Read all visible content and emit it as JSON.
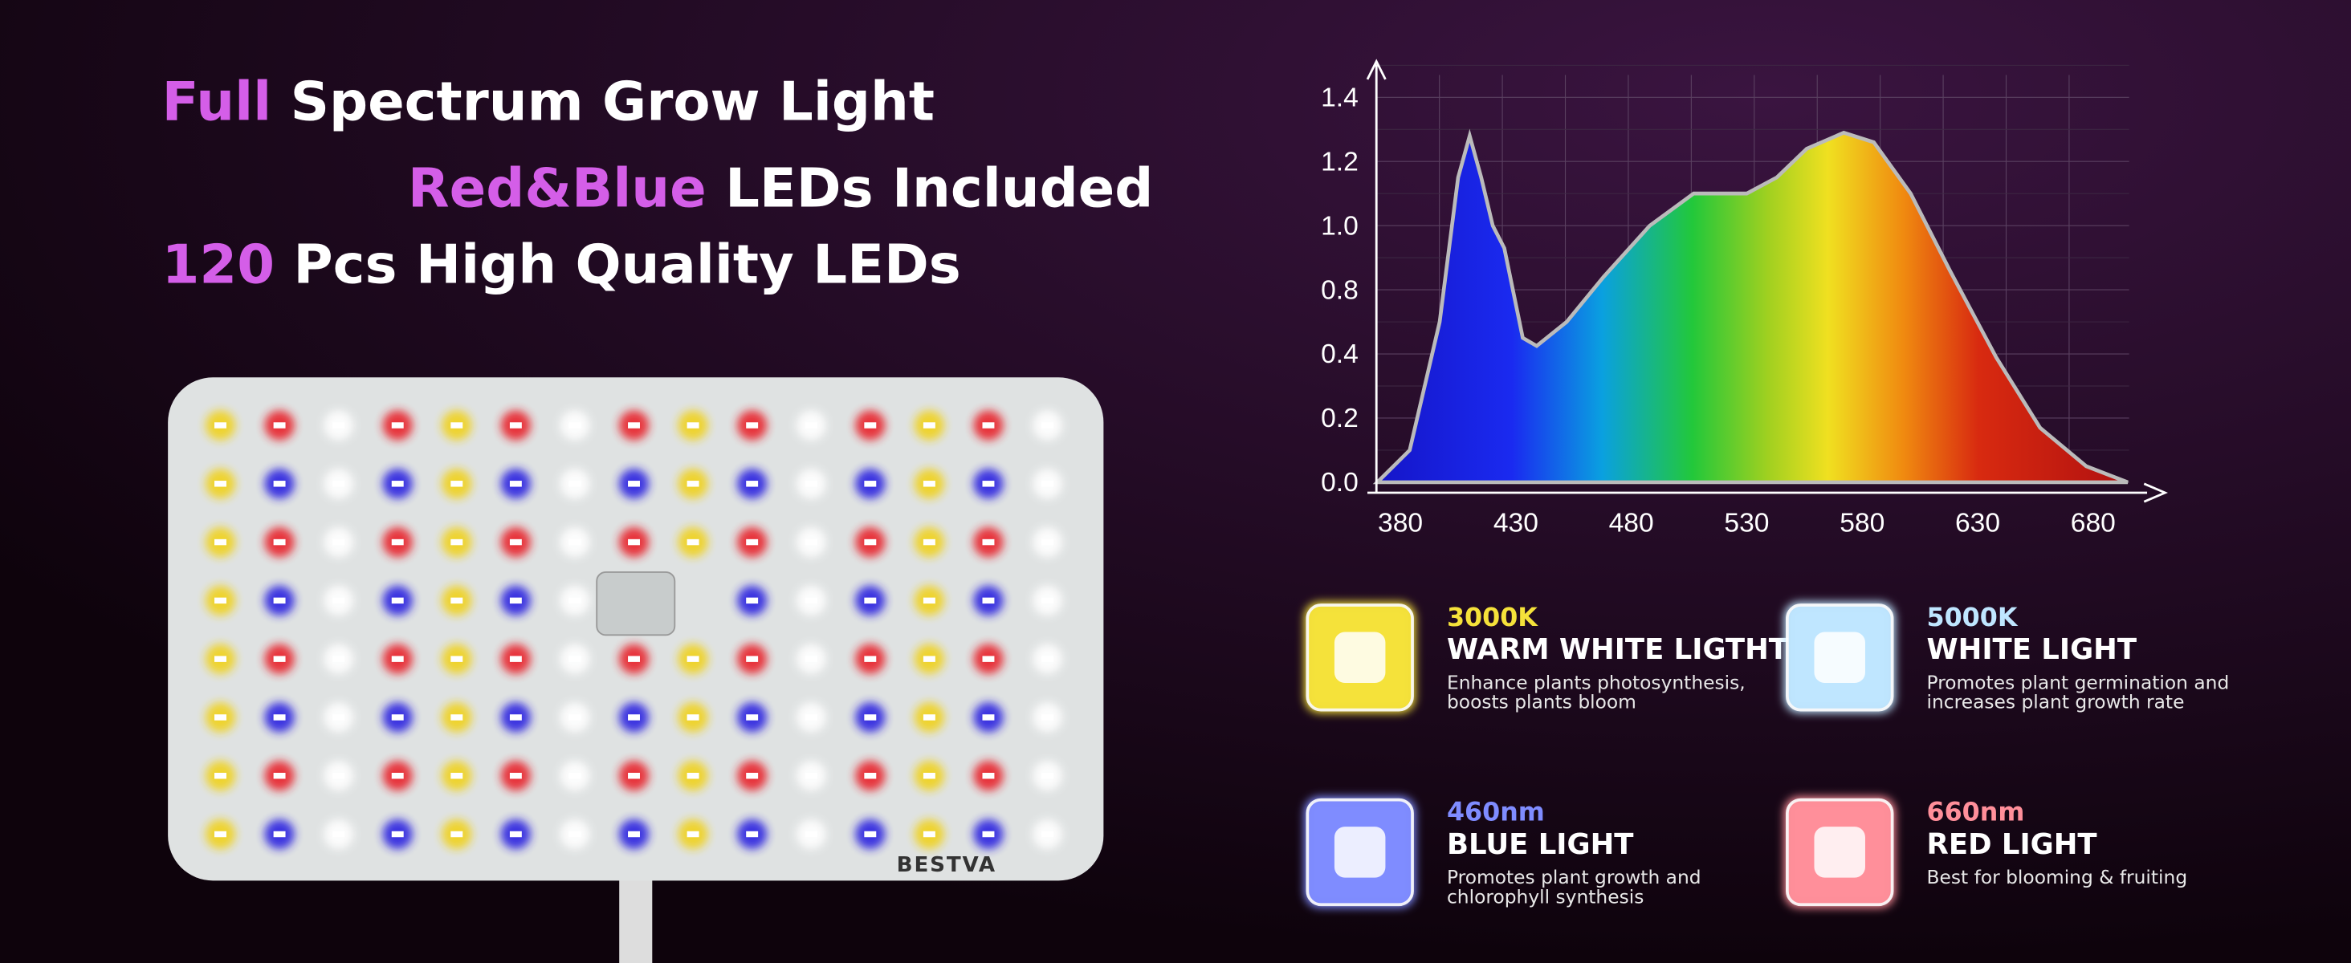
{
  "headline": {
    "lines": [
      {
        "highlight": "Full",
        "text": "Spectrum Grow Light"
      },
      {
        "highlight": "Red&Blue",
        "text": "LEDs Included"
      },
      {
        "highlight": "120",
        "text": "Pcs High Quality LEDs"
      }
    ]
  },
  "panel": {
    "brand": "BESTVA"
  },
  "spectrum": {
    "x": [
      370,
      384,
      397,
      405,
      410,
      415,
      420,
      425,
      433,
      439,
      452,
      468,
      488,
      507,
      520,
      530,
      543,
      556,
      572,
      585,
      601,
      618,
      638,
      657,
      677,
      695
    ],
    "values": [
      0,
      0.1,
      0.6,
      1.15,
      1.28,
      1.15,
      1.0,
      0.93,
      0.5,
      0.45,
      0.6,
      0.84,
      1.0,
      1.1,
      1.1,
      1.1,
      1.15,
      1.24,
      1.29,
      1.26,
      1.1,
      0.86,
      0.39,
      0.17,
      0.05,
      0
    ],
    "xticks": [
      380,
      430,
      480,
      530,
      580,
      630,
      680
    ],
    "yticks": [
      {
        "value": 0,
        "label": "0.0"
      },
      {
        "value": 0.2,
        "label": "0.2"
      },
      {
        "value": 0.4,
        "label": "0.4"
      },
      {
        "value": 0.8,
        "label": "0.8"
      },
      {
        "value": 1.0,
        "label": "1.0"
      },
      {
        "value": 1.2,
        "label": "1.2"
      },
      {
        "value": 1.4,
        "label": "1.4"
      }
    ]
  },
  "cards": [
    {
      "key": "3000K",
      "color": "#f5e23a",
      "title": "WARM WHITE LIGTHT",
      "desc": [
        "Enhance plants photosynthesis,",
        "boosts plants bloom"
      ]
    },
    {
      "key": "5000K",
      "color": "#bfe6ff",
      "title": "WHITE LIGHT",
      "desc": [
        "Promotes plant germination and",
        "increases plant growth rate"
      ]
    },
    {
      "key": "460nm",
      "color": "#7f8cff",
      "title": "BLUE LIGHT",
      "desc": [
        "Promotes plant growth and",
        "chlorophyll synthesis"
      ]
    },
    {
      "key": "660nm",
      "color": "#ff8f9a",
      "title": "RED LIGHT",
      "desc": [
        "Best for blooming & fruiting"
      ]
    }
  ]
}
